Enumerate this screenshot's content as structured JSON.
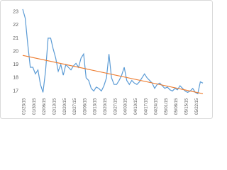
{
  "chart_data": {
    "type": "line",
    "categories": [
      "01/23/15",
      null,
      null,
      null,
      "01/30/15",
      null,
      null,
      null,
      "02/06/15",
      null,
      null,
      null,
      "02/13/15",
      null,
      null,
      null,
      "02/20/15",
      null,
      null,
      null,
      "02/27/15",
      null,
      null,
      null,
      "03/06/15",
      null,
      null,
      null,
      "03/13/15",
      null,
      null,
      null,
      "03/20/15",
      null,
      null,
      null,
      "03/27/15",
      null,
      null,
      null,
      "04/03/15",
      null,
      null,
      null,
      "04/10/15",
      null,
      null,
      null,
      "04/17/15",
      null,
      null,
      null,
      "04/24/15",
      null,
      null,
      null,
      "05/01/15",
      null,
      null,
      null,
      "05/08/15",
      null,
      null,
      null,
      "05/15/15",
      null,
      null,
      null,
      "05/22/15",
      null,
      null,
      null
    ],
    "series": [
      {
        "color": "#5b9bd5",
        "values": [
          23.2,
          22.5,
          20.5,
          18.8,
          18.8,
          18.3,
          18.6,
          17.5,
          16.9,
          18.5,
          21.0,
          21.0,
          20.2,
          19.5,
          18.5,
          19.0,
          18.2,
          19.0,
          18.8,
          18.6,
          18.9,
          19.1,
          18.8,
          19.5,
          19.8,
          18.0,
          17.8,
          17.2,
          17.0,
          17.3,
          17.2,
          17.0,
          17.4,
          18.0,
          19.8,
          18.0,
          17.5,
          17.5,
          17.8,
          18.2,
          18.8,
          17.8,
          17.5,
          17.8,
          17.6,
          17.5,
          17.7,
          18.0,
          18.3,
          18.0,
          17.8,
          17.6,
          17.2,
          17.5,
          17.6,
          17.4,
          17.2,
          17.3,
          17.1,
          17.0,
          17.2,
          17.1,
          17.4,
          17.2,
          17.0,
          16.9,
          17.0,
          17.2,
          16.9,
          16.8,
          17.7,
          17.6
        ]
      }
    ],
    "trendline": {
      "color": "#ed7d31",
      "values": [
        19.7,
        16.8
      ]
    },
    "ylim": [
      16.6,
      23.3
    ],
    "yticks": [
      17,
      18,
      19,
      20,
      21,
      22,
      23
    ],
    "grid": false
  }
}
